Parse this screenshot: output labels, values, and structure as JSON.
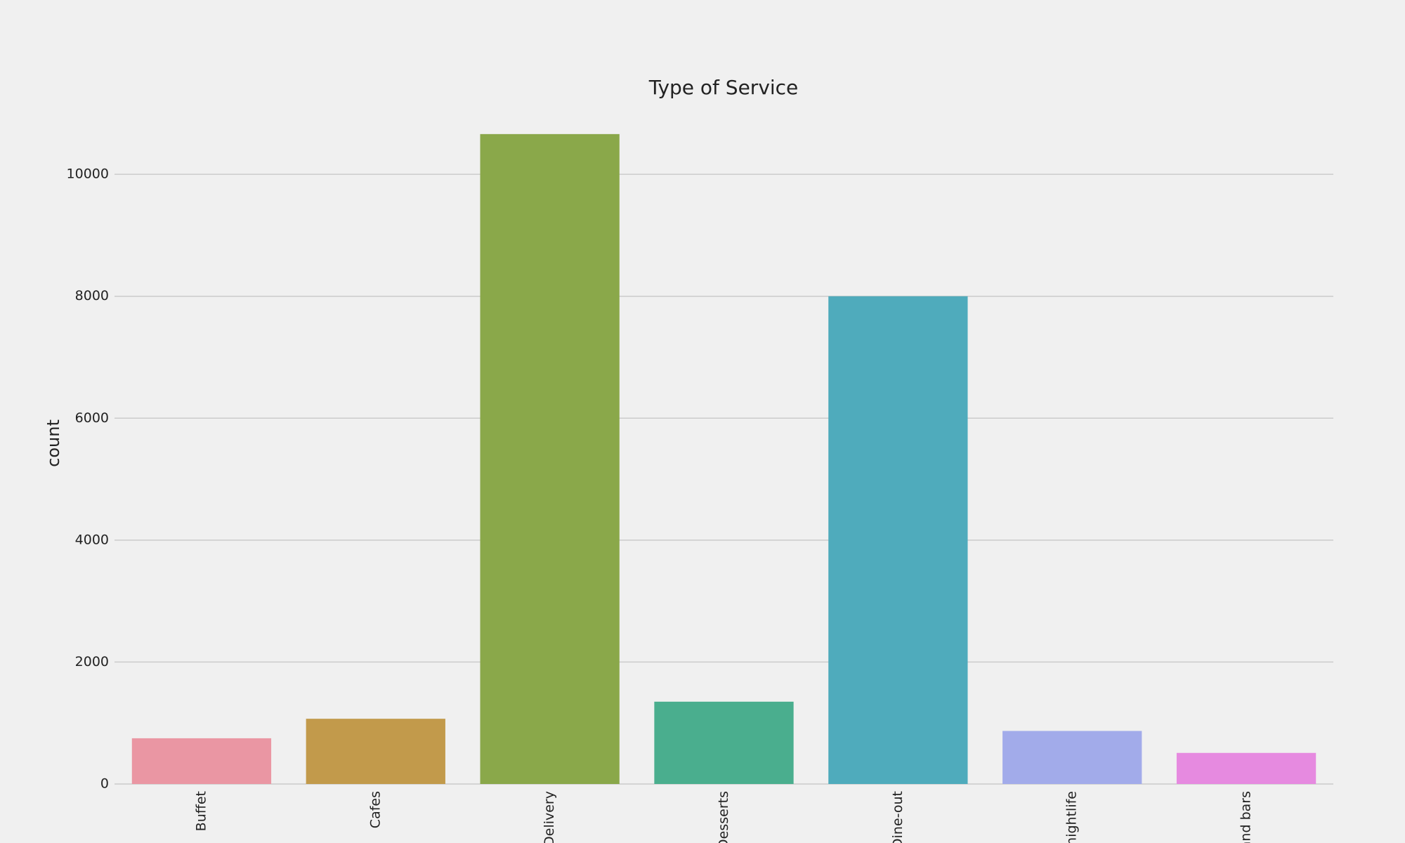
{
  "chart_data": {
    "type": "bar",
    "title": "Type of Service",
    "y_label": "count",
    "categories": [
      "Buffet",
      "Cafes",
      "Delivery",
      "Desserts",
      "Dine-out",
      "nightlife",
      "and bars"
    ],
    "values": [
      750,
      1070,
      10660,
      1350,
      8000,
      870,
      510
    ],
    "colors": [
      "#ea96a3",
      "#c29a4b",
      "#8aa84a",
      "#4aae8e",
      "#4fabbc",
      "#a2abea",
      "#e68ae0"
    ],
    "ylim": [
      0,
      11200
    ],
    "yticks": [
      0,
      2000,
      4000,
      6000,
      8000,
      10000
    ],
    "grid": true
  }
}
